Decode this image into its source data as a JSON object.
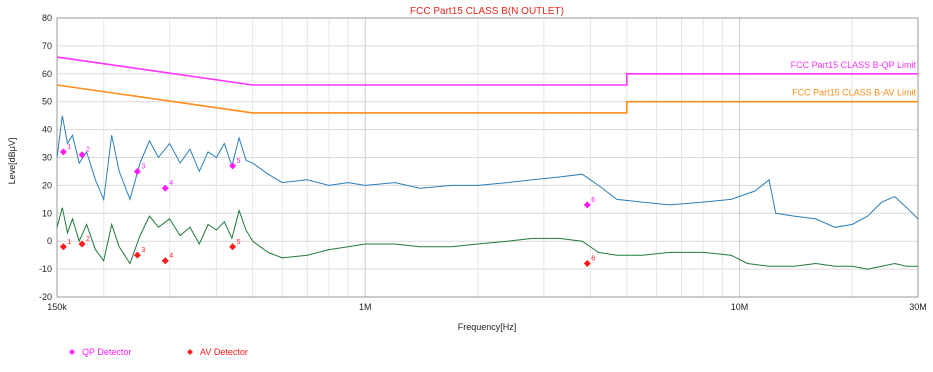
{
  "chart_data": {
    "type": "line",
    "title": "FCC Part15 CLASS B(N OUTLET)",
    "xlabel": "Frequency[Hz]",
    "ylabel": "Leve[dBμV]",
    "x_scale": "log",
    "xlim": [
      150000,
      30000000
    ],
    "ylim": [
      -20,
      80
    ],
    "y_ticks": [
      -20,
      -10,
      0,
      10,
      20,
      30,
      40,
      50,
      60,
      70,
      80
    ],
    "x_tick_labels": [
      {
        "x": 150000,
        "label": "150k"
      },
      {
        "x": 1000000,
        "label": "1M"
      },
      {
        "x": 10000000,
        "label": "10M"
      },
      {
        "x": 30000000,
        "label": "30M"
      }
    ],
    "colors": {
      "qp_limit": "#ff33ff",
      "av_limit": "#ff8c1a",
      "qp_trace": "#2a7fb8",
      "av_trace": "#1f7a3a",
      "qp_marker": "#ff1aff",
      "av_marker": "#ff1a1a",
      "title": "#e8261e"
    },
    "limits": [
      {
        "name": "FCC Part15 CLASS B-QP Limit",
        "points": [
          [
            150000,
            66
          ],
          [
            500000,
            56
          ],
          [
            5000000,
            56
          ],
          [
            5000000,
            60
          ],
          [
            30000000,
            60
          ]
        ]
      },
      {
        "name": "FCC Part15 CLASS B-AV Limit",
        "points": [
          [
            150000,
            56
          ],
          [
            500000,
            46
          ],
          [
            5000000,
            46
          ],
          [
            5000000,
            50
          ],
          [
            30000000,
            50
          ]
        ]
      }
    ],
    "traces": [
      {
        "detector": "QP",
        "points": [
          [
            150000,
            30
          ],
          [
            155000,
            45
          ],
          [
            160000,
            35
          ],
          [
            165000,
            38
          ],
          [
            172000,
            28
          ],
          [
            180000,
            32
          ],
          [
            190000,
            22
          ],
          [
            200000,
            15
          ],
          [
            210000,
            38
          ],
          [
            220000,
            25
          ],
          [
            235000,
            15
          ],
          [
            250000,
            28
          ],
          [
            265000,
            36
          ],
          [
            280000,
            30
          ],
          [
            300000,
            35
          ],
          [
            320000,
            28
          ],
          [
            340000,
            33
          ],
          [
            360000,
            25
          ],
          [
            380000,
            32
          ],
          [
            400000,
            30
          ],
          [
            420000,
            35
          ],
          [
            440000,
            27
          ],
          [
            460000,
            37
          ],
          [
            480000,
            29
          ],
          [
            500000,
            28
          ],
          [
            550000,
            24
          ],
          [
            600000,
            21
          ],
          [
            700000,
            22
          ],
          [
            800000,
            20
          ],
          [
            900000,
            21
          ],
          [
            1000000,
            20
          ],
          [
            1200000,
            21
          ],
          [
            1400000,
            19
          ],
          [
            1700000,
            20
          ],
          [
            2000000,
            20
          ],
          [
            2400000,
            21
          ],
          [
            2800000,
            22
          ],
          [
            3300000,
            23
          ],
          [
            3800000,
            24
          ],
          [
            4200000,
            20
          ],
          [
            4700000,
            15
          ],
          [
            5500000,
            14
          ],
          [
            6500000,
            13
          ],
          [
            8000000,
            14
          ],
          [
            9500000,
            15
          ],
          [
            11000000,
            18
          ],
          [
            12000000,
            22
          ],
          [
            12500000,
            10
          ],
          [
            14000000,
            9
          ],
          [
            16000000,
            8
          ],
          [
            18000000,
            5
          ],
          [
            20000000,
            6
          ],
          [
            22000000,
            9
          ],
          [
            24000000,
            14
          ],
          [
            26000000,
            16
          ],
          [
            28000000,
            12
          ],
          [
            30000000,
            8
          ]
        ]
      },
      {
        "detector": "AV",
        "points": [
          [
            150000,
            5
          ],
          [
            155000,
            12
          ],
          [
            160000,
            3
          ],
          [
            165000,
            8
          ],
          [
            172000,
            0
          ],
          [
            180000,
            6
          ],
          [
            190000,
            -3
          ],
          [
            200000,
            -7
          ],
          [
            210000,
            6
          ],
          [
            220000,
            -2
          ],
          [
            235000,
            -8
          ],
          [
            250000,
            2
          ],
          [
            265000,
            9
          ],
          [
            280000,
            5
          ],
          [
            300000,
            8
          ],
          [
            320000,
            2
          ],
          [
            340000,
            5
          ],
          [
            360000,
            -1
          ],
          [
            380000,
            6
          ],
          [
            400000,
            4
          ],
          [
            420000,
            7
          ],
          [
            440000,
            1
          ],
          [
            460000,
            11
          ],
          [
            480000,
            4
          ],
          [
            500000,
            0
          ],
          [
            550000,
            -4
          ],
          [
            600000,
            -6
          ],
          [
            700000,
            -5
          ],
          [
            800000,
            -3
          ],
          [
            900000,
            -2
          ],
          [
            1000000,
            -1
          ],
          [
            1200000,
            -1
          ],
          [
            1400000,
            -2
          ],
          [
            1700000,
            -2
          ],
          [
            2000000,
            -1
          ],
          [
            2400000,
            0
          ],
          [
            2800000,
            1
          ],
          [
            3300000,
            1
          ],
          [
            3800000,
            0
          ],
          [
            4200000,
            -4
          ],
          [
            4700000,
            -5
          ],
          [
            5500000,
            -5
          ],
          [
            6500000,
            -4
          ],
          [
            8000000,
            -4
          ],
          [
            9500000,
            -5
          ],
          [
            10500000,
            -8
          ],
          [
            12000000,
            -9
          ],
          [
            14000000,
            -9
          ],
          [
            16000000,
            -8
          ],
          [
            18000000,
            -9
          ],
          [
            20000000,
            -9
          ],
          [
            22000000,
            -10
          ],
          [
            24000000,
            -9
          ],
          [
            26000000,
            -8
          ],
          [
            28000000,
            -9
          ],
          [
            30000000,
            -9
          ]
        ]
      }
    ],
    "markers": [
      {
        "detector": "QP",
        "label": "1",
        "x": 156000,
        "y": 32
      },
      {
        "detector": "QP",
        "label": "2",
        "x": 175000,
        "y": 31
      },
      {
        "detector": "QP",
        "label": "3",
        "x": 246000,
        "y": 25
      },
      {
        "detector": "QP",
        "label": "4",
        "x": 292000,
        "y": 19
      },
      {
        "detector": "QP",
        "label": "5",
        "x": 442000,
        "y": 27
      },
      {
        "detector": "QP",
        "label": "6",
        "x": 3920000,
        "y": 13
      },
      {
        "detector": "AV",
        "label": "1",
        "x": 156000,
        "y": -2
      },
      {
        "detector": "AV",
        "label": "2",
        "x": 175000,
        "y": -1
      },
      {
        "detector": "AV",
        "label": "3",
        "x": 246000,
        "y": -5
      },
      {
        "detector": "AV",
        "label": "4",
        "x": 292000,
        "y": -7
      },
      {
        "detector": "AV",
        "label": "5",
        "x": 442000,
        "y": -2
      },
      {
        "detector": "AV",
        "label": "6",
        "x": 3920000,
        "y": -8
      }
    ],
    "grid": true,
    "legend": {
      "placement": "bottom-left",
      "entries": [
        {
          "detector": "QP",
          "label": "QP Detector"
        },
        {
          "detector": "AV",
          "label": "AV Detector"
        }
      ]
    }
  }
}
